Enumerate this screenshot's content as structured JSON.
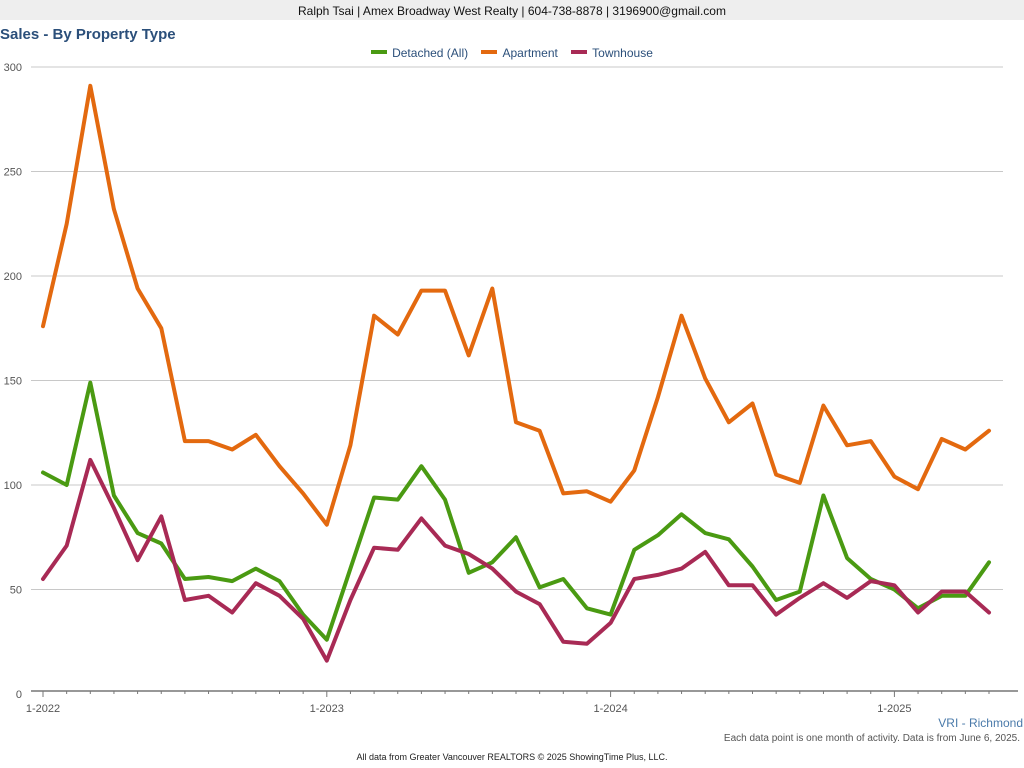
{
  "header": {
    "contact": "Ralph Tsai | Amex Broadway West Realty | 604-738-8878 | 3196900@gmail.com"
  },
  "footer": {
    "region": "VRI - Richmond",
    "note": "Each data point is one month of activity. Data is from June 6, 2025.",
    "source": "All data from Greater Vancouver REALTORS © 2025 ShowingTime Plus, LLC."
  },
  "chart_data": {
    "type": "line",
    "title": "Sales - By Property Type",
    "xlabel": "",
    "ylabel": "",
    "ylim": [
      0,
      300
    ],
    "yticks": [
      0,
      50,
      100,
      150,
      200,
      250,
      300
    ],
    "x": [
      "2022-01",
      "2022-02",
      "2022-03",
      "2022-04",
      "2022-05",
      "2022-06",
      "2022-07",
      "2022-08",
      "2022-09",
      "2022-10",
      "2022-11",
      "2022-12",
      "2023-01",
      "2023-02",
      "2023-03",
      "2023-04",
      "2023-05",
      "2023-06",
      "2023-07",
      "2023-08",
      "2023-09",
      "2023-10",
      "2023-11",
      "2023-12",
      "2024-01",
      "2024-02",
      "2024-03",
      "2024-04",
      "2024-05",
      "2024-06",
      "2024-07",
      "2024-08",
      "2024-09",
      "2024-10",
      "2024-11",
      "2024-12",
      "2025-01",
      "2025-02",
      "2025-03",
      "2025-04",
      "2025-05"
    ],
    "xtick_labels": [
      {
        "index": 0,
        "label": "1-2022"
      },
      {
        "index": 12,
        "label": "1-2023"
      },
      {
        "index": 24,
        "label": "1-2024"
      },
      {
        "index": 36,
        "label": "1-2025"
      }
    ],
    "grid": true,
    "legend_position": "top-center",
    "series": [
      {
        "name": "Detached (All)",
        "color": "#4a9a12",
        "values": [
          106,
          100,
          149,
          95,
          77,
          72,
          55,
          56,
          54,
          60,
          54,
          38,
          26,
          60,
          94,
          93,
          109,
          93,
          58,
          63,
          75,
          51,
          55,
          41,
          38,
          69,
          76,
          86,
          77,
          74,
          61,
          45,
          49,
          95,
          65,
          55,
          50,
          41,
          47,
          47,
          63
        ]
      },
      {
        "name": "Apartment",
        "color": "#e3690f",
        "values": [
          176,
          225,
          291,
          232,
          194,
          175,
          121,
          121,
          117,
          124,
          109,
          96,
          81,
          119,
          181,
          172,
          193,
          193,
          162,
          194,
          130,
          126,
          96,
          97,
          92,
          107,
          142,
          181,
          151,
          130,
          139,
          105,
          101,
          138,
          119,
          121,
          104,
          98,
          122,
          117,
          126
        ]
      },
      {
        "name": "Townhouse",
        "color": "#a82a55",
        "values": [
          55,
          71,
          112,
          89,
          64,
          85,
          45,
          47,
          39,
          53,
          47,
          36,
          16,
          45,
          70,
          69,
          84,
          71,
          67,
          60,
          49,
          43,
          25,
          24,
          34,
          55,
          57,
          60,
          68,
          52,
          52,
          38,
          46,
          53,
          46,
          54,
          52,
          39,
          49,
          49,
          39
        ]
      }
    ]
  }
}
